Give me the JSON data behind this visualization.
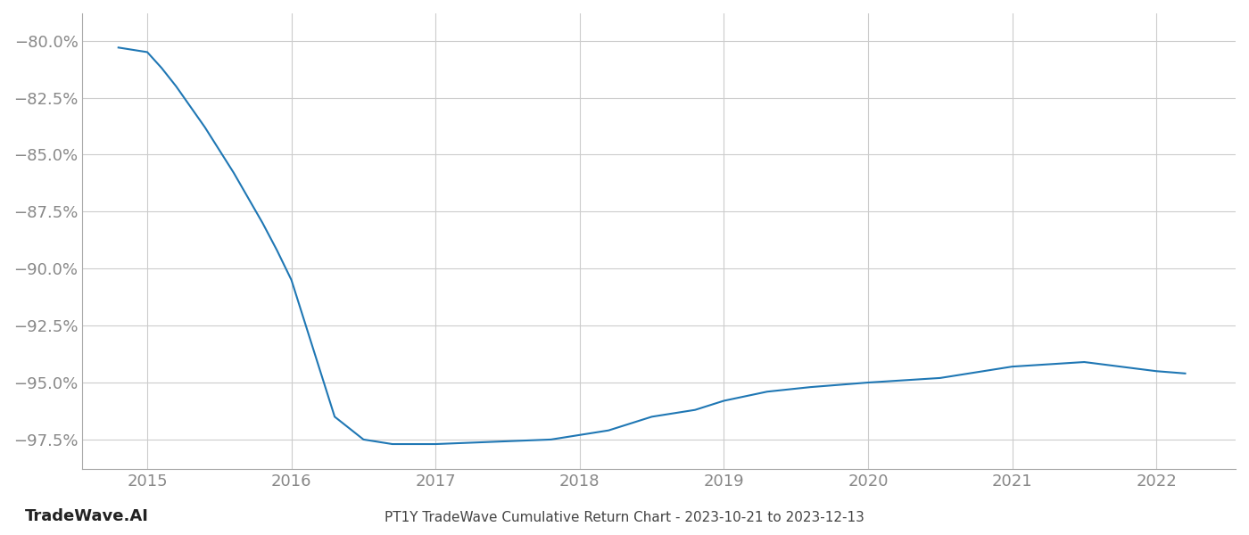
{
  "title": "PT1Y TradeWave Cumulative Return Chart - 2023-10-21 to 2023-12-13",
  "watermark": "TradeWave.AI",
  "line_color": "#1f77b4",
  "background_color": "#ffffff",
  "grid_color": "#cccccc",
  "x_years": [
    2015,
    2016,
    2017,
    2018,
    2019,
    2020,
    2021,
    2022
  ],
  "data_x": [
    2014.8,
    2015.0,
    2015.1,
    2015.2,
    2015.3,
    2015.4,
    2015.5,
    2015.6,
    2015.7,
    2015.8,
    2015.9,
    2016.0,
    2016.05,
    2016.1,
    2016.2,
    2016.3,
    2016.5,
    2016.7,
    2017.0,
    2017.2,
    2017.4,
    2017.6,
    2017.8,
    2018.0,
    2018.2,
    2018.5,
    2018.8,
    2019.0,
    2019.3,
    2019.6,
    2020.0,
    2020.5,
    2021.0,
    2021.5,
    2022.0,
    2022.2
  ],
  "data_y": [
    -80.3,
    -80.5,
    -81.2,
    -82.0,
    -82.9,
    -83.8,
    -84.8,
    -85.8,
    -86.9,
    -88.0,
    -89.2,
    -90.5,
    -91.5,
    -92.5,
    -94.5,
    -96.5,
    -97.5,
    -97.7,
    -97.7,
    -97.65,
    -97.6,
    -97.55,
    -97.5,
    -97.3,
    -97.1,
    -96.5,
    -96.2,
    -95.8,
    -95.4,
    -95.2,
    -95.0,
    -94.8,
    -94.3,
    -94.1,
    -94.5,
    -94.6
  ],
  "ylim": [
    -98.8,
    -78.8
  ],
  "yticks": [
    -80.0,
    -82.5,
    -85.0,
    -87.5,
    -90.0,
    -92.5,
    -95.0,
    -97.5
  ],
  "xlim": [
    2014.55,
    2022.55
  ],
  "title_fontsize": 11,
  "tick_fontsize": 13,
  "watermark_fontsize": 13,
  "axis_label_color": "#888888",
  "line_width": 1.5
}
